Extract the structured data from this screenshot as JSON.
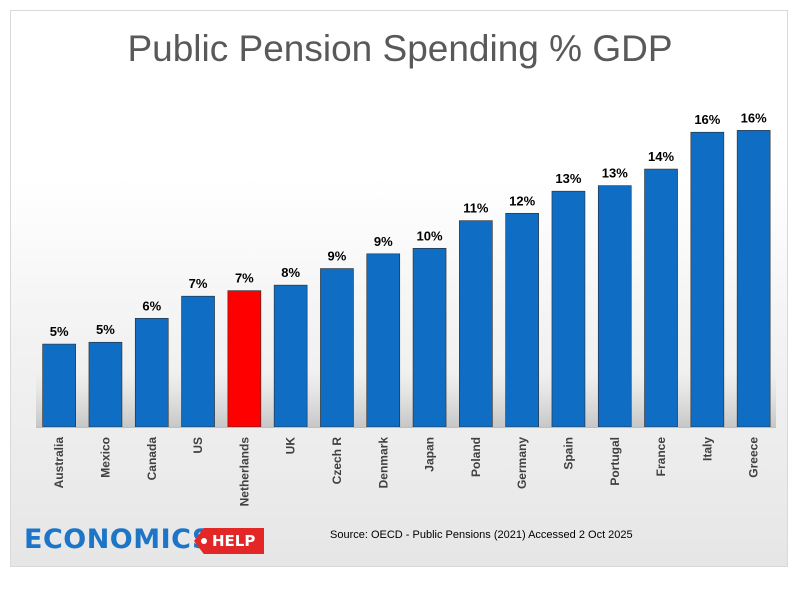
{
  "chart_data": {
    "type": "bar",
    "title": "Public Pension Spending % GDP",
    "xlabel": "",
    "ylabel": "",
    "categories": [
      "Australia",
      "Mexico",
      "Canada",
      "US",
      "Netherlands",
      "UK",
      "Czech R",
      "Denmark",
      "Japan",
      "Poland",
      "Germany",
      "Spain",
      "Portugal",
      "France",
      "Italy",
      "Greece"
    ],
    "values": [
      4.5,
      4.6,
      5.9,
      7.1,
      7.4,
      7.7,
      8.6,
      9.4,
      9.7,
      11.2,
      11.6,
      12.8,
      13.1,
      14.0,
      16.0,
      16.1
    ],
    "data_labels": [
      "5%",
      "5%",
      "6%",
      "7%",
      "7%",
      "8%",
      "9%",
      "9%",
      "10%",
      "11%",
      "12%",
      "13%",
      "13%",
      "14%",
      "16%",
      "16%"
    ],
    "highlight_category": "Netherlands",
    "ylim": [
      0,
      16.5
    ],
    "grid": false,
    "legend": "none",
    "colors": {
      "bar": "#0f6ec4",
      "highlight": "#ff0000",
      "label": "#000000",
      "tick": "#404040"
    }
  },
  "source": "Source: OECD - Public Pensions (2021) Accessed 2 Oct 2025",
  "logo": {
    "main": "ECONOMICS",
    "tag": "HELP"
  }
}
